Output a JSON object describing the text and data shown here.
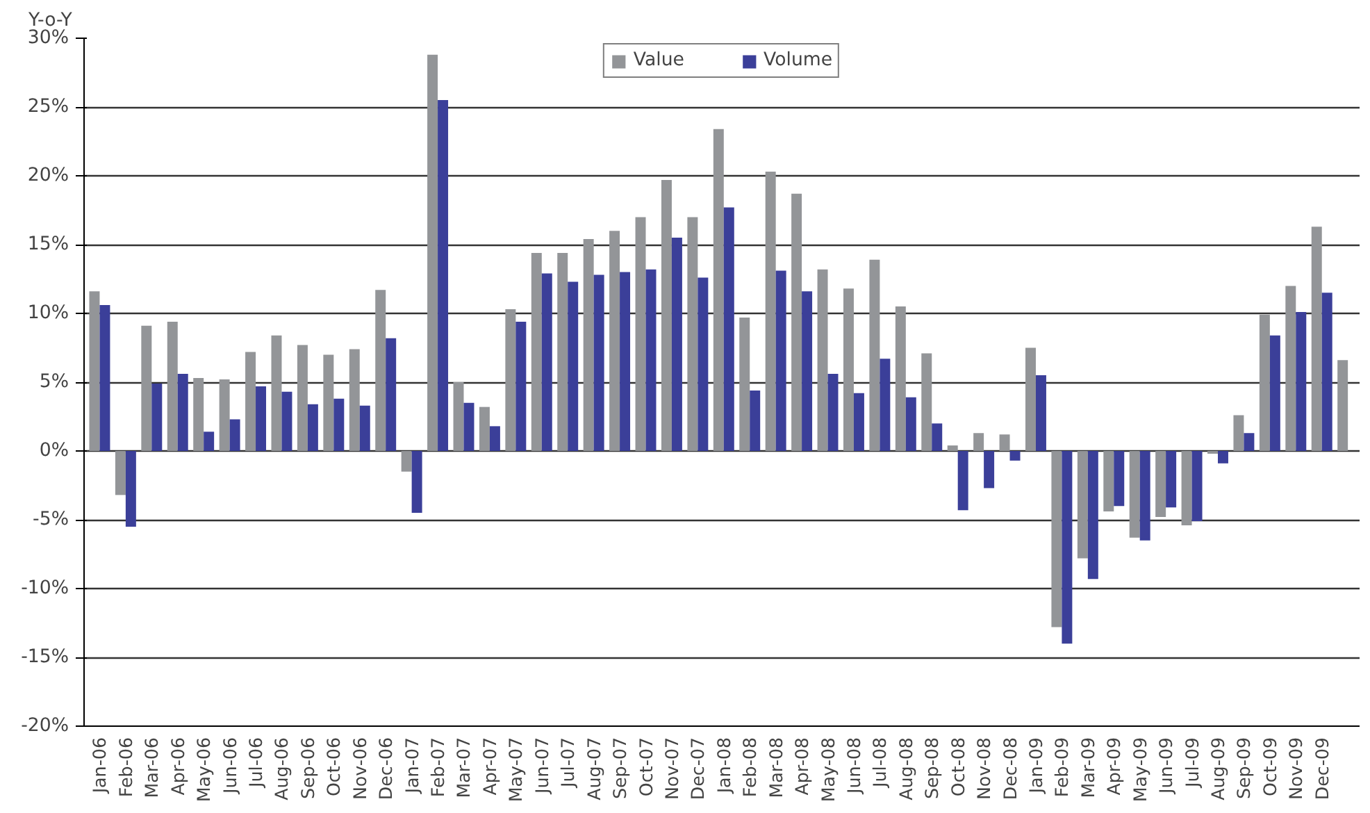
{
  "chart_data": {
    "type": "bar",
    "ylabel": "Y-o-Y",
    "categories": [
      "Jan-06",
      "Feb-06",
      "Mar-06",
      "Apr-06",
      "May-06",
      "Jun-06",
      "Jul-06",
      "Aug-06",
      "Sep-06",
      "Oct-06",
      "Nov-06",
      "Dec-06",
      "Jan-07",
      "Feb-07",
      "Mar-07",
      "Apr-07",
      "May-07",
      "Jun-07",
      "Jul-07",
      "Aug-07",
      "Sep-07",
      "Oct-07",
      "Nov-07",
      "Dec-07",
      "Jan-08",
      "Feb-08",
      "Mar-08",
      "Apr-08",
      "May-08",
      "Jun-08",
      "Jul-08",
      "Aug-08",
      "Sep-08",
      "Oct-08",
      "Nov-08",
      "Dec-08",
      "Jan-09",
      "Feb-09",
      "Mar-09",
      "Apr-09",
      "May-09",
      "Jun-09",
      "Jul-09",
      "Aug-09",
      "Sep-09",
      "Oct-09",
      "Nov-09",
      "Dec-09",
      null
    ],
    "series": [
      {
        "name": "Value",
        "color": "#939598",
        "values": [
          11.6,
          -3.2,
          9.1,
          9.4,
          5.3,
          5.2,
          7.2,
          8.4,
          7.7,
          7.0,
          7.4,
          11.7,
          -1.5,
          28.8,
          5.0,
          3.2,
          10.3,
          14.4,
          14.4,
          15.4,
          16.0,
          17.0,
          19.7,
          17.0,
          23.4,
          9.7,
          20.3,
          18.7,
          13.2,
          11.8,
          13.9,
          10.5,
          7.1,
          0.4,
          1.3,
          1.2,
          7.5,
          -12.8,
          -7.8,
          -4.4,
          -6.3,
          -4.8,
          -5.4,
          -0.2,
          2.6,
          9.9,
          12.0,
          16.3,
          6.6
        ]
      },
      {
        "name": "Volume",
        "color": "#3b3f99",
        "values": [
          10.6,
          -5.5,
          4.9,
          5.6,
          1.4,
          2.3,
          4.7,
          4.3,
          3.4,
          3.8,
          3.3,
          8.2,
          -4.5,
          25.5,
          3.5,
          1.8,
          9.4,
          12.9,
          12.3,
          12.8,
          13.0,
          13.2,
          15.5,
          12.6,
          17.7,
          4.4,
          13.1,
          11.6,
          5.6,
          4.2,
          6.7,
          3.9,
          2.0,
          -4.3,
          -2.7,
          -0.7,
          5.5,
          -14.0,
          -9.3,
          -4.0,
          -6.5,
          -4.1,
          -5.1,
          -0.9,
          1.3,
          8.4,
          10.1,
          11.5,
          null
        ]
      }
    ],
    "ylim": [
      -20,
      30
    ],
    "yticks": [
      {
        "value": -20,
        "label": "-20%"
      },
      {
        "value": -15,
        "label": "-15%"
      },
      {
        "value": -10,
        "label": "-10%"
      },
      {
        "value": -5,
        "label": "-5%"
      },
      {
        "value": 0,
        "label": "0%"
      },
      {
        "value": 5,
        "label": "5%"
      },
      {
        "value": 10,
        "label": "10%"
      },
      {
        "value": 15,
        "label": "15%"
      },
      {
        "value": 20,
        "label": "20%"
      },
      {
        "value": 25,
        "label": "25%"
      },
      {
        "value": 30,
        "label": "30%"
      }
    ],
    "grid": "y",
    "legend": "top"
  }
}
